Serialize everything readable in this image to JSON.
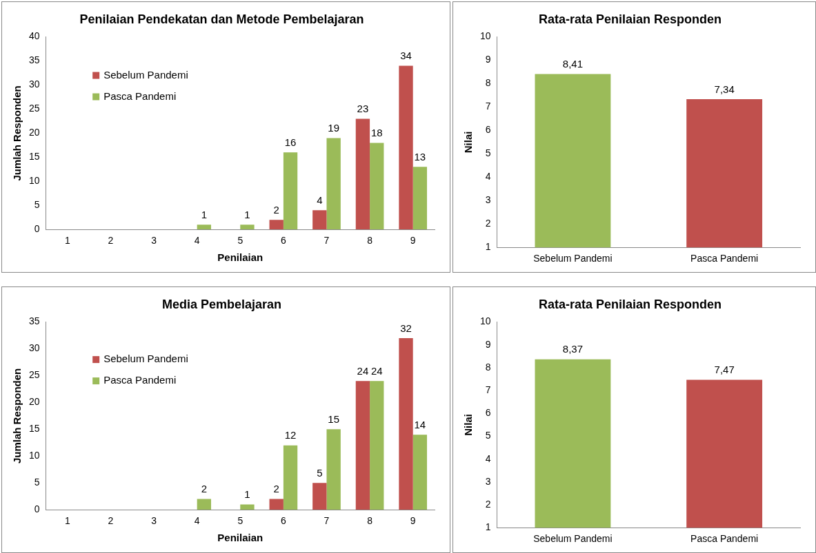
{
  "chart_data": [
    {
      "type": "bar",
      "title": "Penilaian Pendekatan dan Metode Pembelajaran",
      "xlabel": "Penilaian",
      "ylabel": "Jumlah Responden",
      "categories": [
        "1",
        "2",
        "3",
        "4",
        "5",
        "6",
        "7",
        "8",
        "9"
      ],
      "series": [
        {
          "name": "Sebelum Pandemi",
          "color": "#c0504d",
          "values": [
            0,
            0,
            0,
            0,
            0,
            2,
            4,
            23,
            34
          ],
          "value_labels": [
            null,
            null,
            null,
            null,
            null,
            "2",
            "4",
            "23",
            "34"
          ]
        },
        {
          "name": "Pasca Pandemi",
          "color": "#9bbb59",
          "values": [
            0,
            0,
            0,
            1,
            1,
            16,
            19,
            18,
            13
          ],
          "value_labels": [
            null,
            null,
            null,
            "1",
            "1",
            "16",
            "19",
            "18",
            "13"
          ]
        }
      ],
      "ylim": [
        0,
        40
      ],
      "yticks": [
        0,
        5,
        10,
        15,
        20,
        25,
        30,
        35,
        40
      ],
      "legend": "top left"
    },
    {
      "type": "bar",
      "title": "Rata-rata Penilaian Responden",
      "ylabel": "Nilai",
      "categories": [
        "Sebelum Pandemi",
        "Pasca Pandemi"
      ],
      "values": [
        8.41,
        7.34
      ],
      "colors": [
        "#9bbb59",
        "#c0504d"
      ],
      "value_labels": [
        "8,41",
        "7,34"
      ],
      "ylim": [
        1,
        10
      ],
      "yticks": [
        1,
        2,
        3,
        4,
        5,
        6,
        7,
        8,
        9,
        10
      ]
    },
    {
      "type": "bar",
      "title": "Media Pembelajaran",
      "xlabel": "Penilaian",
      "ylabel": "Jumlah Responden",
      "categories": [
        "1",
        "2",
        "3",
        "4",
        "5",
        "6",
        "7",
        "8",
        "9"
      ],
      "series": [
        {
          "name": "Sebelum Pandemi",
          "color": "#c0504d",
          "values": [
            0,
            0,
            0,
            0,
            0,
            2,
            5,
            24,
            32
          ],
          "value_labels": [
            null,
            null,
            null,
            null,
            null,
            "2",
            "5",
            "24",
            "32"
          ]
        },
        {
          "name": "Pasca Pandemi",
          "color": "#9bbb59",
          "values": [
            0,
            0,
            0,
            2,
            1,
            12,
            15,
            24,
            14
          ],
          "value_labels": [
            null,
            null,
            null,
            "2",
            "1",
            "12",
            "15",
            "24",
            "14"
          ]
        }
      ],
      "ylim": [
        0,
        35
      ],
      "yticks": [
        0,
        5,
        10,
        15,
        20,
        25,
        30,
        35
      ],
      "legend": "top left"
    },
    {
      "type": "bar",
      "title": "Rata-rata Penilaian Responden",
      "ylabel": "Nilai",
      "categories": [
        "Sebelum Pandemi",
        "Pasca Pandemi"
      ],
      "values": [
        8.37,
        7.47
      ],
      "colors": [
        "#9bbb59",
        "#c0504d"
      ],
      "value_labels": [
        "8,37",
        "7,47"
      ],
      "ylim": [
        1,
        10
      ],
      "yticks": [
        1,
        2,
        3,
        4,
        5,
        6,
        7,
        8,
        9,
        10
      ]
    }
  ]
}
